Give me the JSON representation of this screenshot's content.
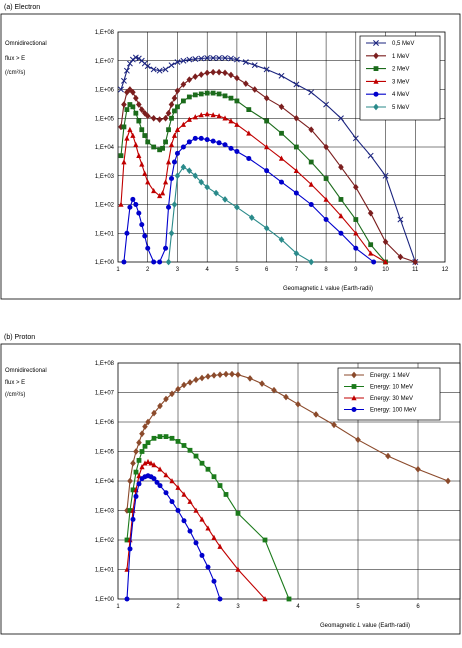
{
  "chart_data": [
    {
      "type": "line",
      "panel_title": "(a) Electron",
      "ylabel_lines": [
        "Omnidirectional",
        "flux > E",
        "(/cm²/s)"
      ],
      "xlabel_prefix": "Geomagnetic ",
      "xlabel_italic": "L",
      "xlabel_suffix": " value (Earth-radii)",
      "y_scale": "log",
      "xlim": [
        1,
        12
      ],
      "ylim": [
        1,
        100000000
      ],
      "x_ticks": [
        1,
        2,
        3,
        4,
        5,
        6,
        7,
        8,
        9,
        10,
        11,
        12
      ],
      "y_tick_labels": [
        "1,E+00",
        "1,E+01",
        "1,E+02",
        "1,E+03",
        "1,E+04",
        "1,E+05",
        "1,E+06",
        "1,E+07",
        "1,E+08"
      ],
      "grid": true,
      "legend_position": "top-right",
      "series": [
        {
          "name": "0,5 MeV",
          "color": "#1a237e",
          "marker": "x",
          "x": [
            1.1,
            1.2,
            1.3,
            1.4,
            1.5,
            1.6,
            1.7,
            1.8,
            1.9,
            2.0,
            2.2,
            2.4,
            2.6,
            2.8,
            3.0,
            3.2,
            3.4,
            3.6,
            3.8,
            4.0,
            4.2,
            4.4,
            4.6,
            4.8,
            5.0,
            5.3,
            5.6,
            6.0,
            6.5,
            7.0,
            7.5,
            8.0,
            8.5,
            9.0,
            9.5,
            10.0,
            10.5,
            11.0
          ],
          "y": [
            1000000,
            2000000,
            4500000,
            8000000,
            11000000,
            13000000,
            12000000,
            10000000,
            8000000,
            6500000,
            5000000,
            4500000,
            5000000,
            7000000,
            9000000,
            10000000,
            11000000,
            11500000,
            12000000,
            12500000,
            12500000,
            12500000,
            12500000,
            12000000,
            11000000,
            9000000,
            7000000,
            5000000,
            3000000,
            1500000,
            800000,
            300000,
            100000,
            20000,
            5000,
            1000,
            30,
            1
          ]
        },
        {
          "name": "1 MeV",
          "color": "#7b1e1e",
          "marker": "diamond",
          "x": [
            1.1,
            1.2,
            1.3,
            1.4,
            1.5,
            1.6,
            1.7,
            1.8,
            1.9,
            2.0,
            2.2,
            2.4,
            2.6,
            2.7,
            2.8,
            2.9,
            3.0,
            3.2,
            3.4,
            3.6,
            3.8,
            4.0,
            4.2,
            4.4,
            4.6,
            4.8,
            5.0,
            5.3,
            5.6,
            6.0,
            6.5,
            7.0,
            7.5,
            8.0,
            8.5,
            9.0,
            9.5,
            10.0,
            10.5,
            11.0
          ],
          "y": [
            50000,
            300000,
            800000,
            1000000,
            800000,
            500000,
            300000,
            200000,
            150000,
            120000,
            100000,
            90000,
            100000,
            150000,
            300000,
            500000,
            900000,
            1500000,
            2200000,
            2800000,
            3300000,
            3800000,
            4000000,
            4000000,
            3800000,
            3200000,
            2500000,
            1600000,
            1000000,
            500000,
            250000,
            100000,
            40000,
            10000,
            2000,
            400,
            50,
            5,
            1.5,
            1
          ]
        },
        {
          "name": "2 MeV",
          "color": "#1b6b1b",
          "marker": "square",
          "x": [
            1.1,
            1.2,
            1.3,
            1.4,
            1.5,
            1.6,
            1.7,
            1.8,
            1.9,
            2.0,
            2.2,
            2.4,
            2.5,
            2.6,
            2.7,
            2.8,
            2.9,
            3.0,
            3.2,
            3.4,
            3.6,
            3.8,
            4.0,
            4.2,
            4.4,
            4.6,
            4.8,
            5.0,
            5.4,
            6.0,
            6.5,
            7.0,
            7.5,
            8.0,
            8.5,
            9.0,
            9.5,
            10.0
          ],
          "y": [
            5000,
            50000,
            200000,
            300000,
            250000,
            150000,
            80000,
            40000,
            25000,
            15000,
            10000,
            8000,
            9000,
            15000,
            40000,
            100000,
            180000,
            250000,
            400000,
            550000,
            650000,
            700000,
            750000,
            750000,
            700000,
            600000,
            500000,
            400000,
            200000,
            80000,
            30000,
            10000,
            3000,
            800,
            150,
            30,
            4,
            1
          ]
        },
        {
          "name": "3 MeV",
          "color": "#c00000",
          "marker": "triangle",
          "x": [
            1.1,
            1.2,
            1.3,
            1.4,
            1.5,
            1.6,
            1.7,
            1.8,
            1.9,
            2.0,
            2.2,
            2.4,
            2.5,
            2.6,
            2.7,
            2.8,
            2.9,
            3.0,
            3.2,
            3.4,
            3.6,
            3.8,
            4.0,
            4.2,
            4.4,
            4.6,
            4.8,
            5.0,
            5.4,
            6.0,
            6.5,
            7.0,
            7.5,
            8.0,
            8.5,
            9.0,
            9.5,
            10.0
          ],
          "y": [
            100,
            3000,
            20000,
            40000,
            25000,
            12000,
            5000,
            2500,
            1200,
            600,
            300,
            200,
            250,
            600,
            3000,
            12000,
            25000,
            40000,
            60000,
            90000,
            110000,
            130000,
            140000,
            130000,
            120000,
            100000,
            80000,
            60000,
            30000,
            10000,
            4000,
            1500,
            500,
            150,
            40,
            10,
            2,
            1
          ]
        },
        {
          "name": "4 MeV",
          "color": "#0000cc",
          "marker": "circle",
          "x": [
            1.2,
            1.3,
            1.4,
            1.5,
            1.6,
            1.7,
            1.8,
            1.9,
            2.0,
            2.2,
            2.4,
            2.6,
            2.7,
            2.8,
            2.9,
            3.0,
            3.2,
            3.4,
            3.6,
            3.8,
            4.0,
            4.2,
            4.4,
            4.6,
            4.8,
            5.0,
            5.4,
            6.0,
            6.5,
            7.0,
            7.5,
            8.0,
            8.5,
            9.0,
            9.6
          ],
          "y": [
            1,
            10,
            80,
            150,
            100,
            50,
            20,
            8,
            3,
            1,
            1,
            3,
            80,
            800,
            3000,
            6000,
            10000,
            15000,
            20000,
            20000,
            18000,
            16000,
            14000,
            12000,
            9000,
            7000,
            4000,
            1500,
            600,
            250,
            100,
            30,
            10,
            3,
            1
          ]
        },
        {
          "name": "5 MeV",
          "color": "#2a8a8a",
          "marker": "diamond",
          "x": [
            2.7,
            2.8,
            2.9,
            3.0,
            3.2,
            3.4,
            3.6,
            3.8,
            4.0,
            4.3,
            4.6,
            5.0,
            5.5,
            6.0,
            6.5,
            7.0,
            7.5
          ],
          "y": [
            1,
            10,
            100,
            1000,
            2000,
            1500,
            1000,
            600,
            400,
            250,
            150,
            80,
            35,
            15,
            6,
            2,
            1
          ]
        }
      ]
    },
    {
      "type": "line",
      "panel_title": "(b) Proton",
      "ylabel_lines": [
        "Omnidirectional",
        "flux > E",
        "(/cm²/s)"
      ],
      "xlabel_prefix": "Geomagnetic ",
      "xlabel_italic": "L",
      "xlabel_suffix": " value (Earth-radii)",
      "y_scale": "log",
      "xlim": [
        1,
        6.7
      ],
      "ylim": [
        1,
        100000000
      ],
      "x_ticks": [
        1,
        2,
        3,
        4,
        5,
        6
      ],
      "y_tick_labels": [
        "1,E+00",
        "1,E+01",
        "1,E+02",
        "1,E+03",
        "1,E+04",
        "1,E+05",
        "1,E+06",
        "1,E+07",
        "1,E+08"
      ],
      "grid": true,
      "legend_position": "top-right",
      "series": [
        {
          "name": "Energy: 1 MeV",
          "color": "#8b4a2b",
          "marker": "diamond",
          "x": [
            1.15,
            1.2,
            1.25,
            1.3,
            1.35,
            1.4,
            1.45,
            1.5,
            1.6,
            1.7,
            1.8,
            1.9,
            2.0,
            2.1,
            2.2,
            2.3,
            2.4,
            2.5,
            2.6,
            2.7,
            2.8,
            2.9,
            3.0,
            3.2,
            3.4,
            3.6,
            3.8,
            4.0,
            4.3,
            4.6,
            5.0,
            5.5,
            6.0,
            6.5
          ],
          "y": [
            1000,
            10000,
            40000,
            100000,
            200000,
            400000,
            700000,
            1000000,
            2000000,
            3500000,
            6000000,
            9000000,
            13000000,
            18000000,
            22000000,
            27000000,
            31000000,
            35000000,
            38000000,
            40000000,
            42000000,
            42000000,
            40000000,
            30000000,
            20000000,
            12000000,
            7000000,
            4000000,
            1800000,
            800000,
            250000,
            70000,
            25000,
            10000
          ]
        },
        {
          "name": "Energy: 10 MeV",
          "color": "#1b7a1b",
          "marker": "square",
          "x": [
            1.15,
            1.2,
            1.25,
            1.3,
            1.35,
            1.4,
            1.45,
            1.5,
            1.6,
            1.7,
            1.8,
            1.9,
            2.0,
            2.1,
            2.2,
            2.3,
            2.4,
            2.5,
            2.6,
            2.7,
            2.8,
            3.0,
            3.45,
            3.85
          ],
          "y": [
            100,
            1000,
            5000,
            20000,
            50000,
            100000,
            150000,
            200000,
            280000,
            320000,
            320000,
            280000,
            220000,
            160000,
            110000,
            70000,
            40000,
            25000,
            14000,
            7000,
            3500,
            800,
            100,
            1
          ]
        },
        {
          "name": "Energy: 30 MeV",
          "color": "#c00000",
          "marker": "triangle",
          "x": [
            1.15,
            1.2,
            1.25,
            1.3,
            1.35,
            1.4,
            1.45,
            1.5,
            1.55,
            1.6,
            1.7,
            1.8,
            1.9,
            2.0,
            2.1,
            2.2,
            2.3,
            2.4,
            2.5,
            2.6,
            2.7,
            3.0,
            3.45
          ],
          "y": [
            10,
            100,
            1000,
            5000,
            15000,
            30000,
            40000,
            45000,
            40000,
            35000,
            25000,
            16000,
            10000,
            6000,
            3500,
            2000,
            1000,
            500,
            250,
            120,
            60,
            10,
            1
          ]
        },
        {
          "name": "Energy: 100 MeV",
          "color": "#0000cc",
          "marker": "circle",
          "x": [
            1.15,
            1.2,
            1.25,
            1.3,
            1.35,
            1.4,
            1.45,
            1.5,
            1.55,
            1.6,
            1.65,
            1.7,
            1.8,
            1.9,
            2.0,
            2.1,
            2.2,
            2.3,
            2.4,
            2.5,
            2.6,
            2.7
          ],
          "y": [
            1,
            50,
            500,
            3000,
            8000,
            12000,
            14000,
            15000,
            14000,
            12000,
            9000,
            7000,
            4000,
            2000,
            1000,
            450,
            200,
            80,
            30,
            12,
            4,
            1
          ]
        }
      ]
    }
  ]
}
